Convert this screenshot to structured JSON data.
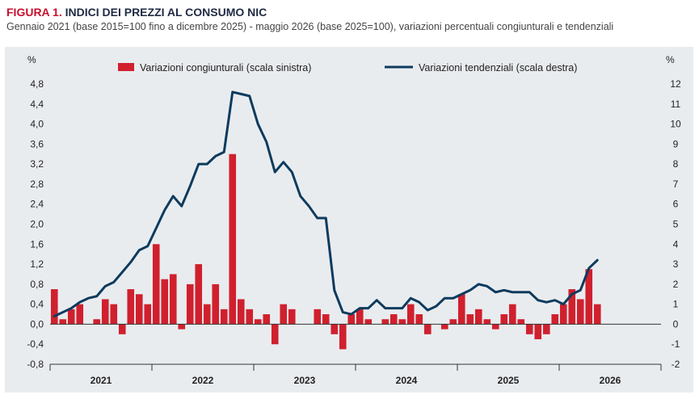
{
  "header": {
    "figure_label": "FIGURA 1.",
    "title": "INDICI DEI PREZZI AL CONSUMO NIC",
    "subtitle": "Gennaio 2021 (base 2015=100 fino a dicembre 2025) - maggio 2026 (base 2025=100), variazioni percentuali congiunturali e tendenziali"
  },
  "colors": {
    "bars": "#d0202e",
    "line": "#0d3b5e",
    "background": "#e9ecef",
    "title_red": "#c8102e"
  },
  "chart_data": {
    "type": "bar+line",
    "legend_position": "top",
    "grid": false,
    "left_axis": {
      "unit": "%",
      "ylim": [
        -0.8,
        4.8
      ],
      "ticks": [
        "4,8",
        "4,4",
        "4,0",
        "3,6",
        "3,2",
        "2,8",
        "2,4",
        "2,0",
        "1,6",
        "1,2",
        "0,8",
        "0,4",
        "0,0",
        "-0,4",
        "-0,8"
      ]
    },
    "right_axis": {
      "unit": "%",
      "ylim": [
        -2,
        12
      ],
      "ticks": [
        "12",
        "11",
        "10",
        "9",
        "8",
        "7",
        "6",
        "5",
        "4",
        "3",
        "2",
        "1",
        "0",
        "-1",
        "-2"
      ]
    },
    "x_labels": [
      "2021",
      "2022",
      "2023",
      "2024",
      "2025",
      "2026"
    ],
    "months": [
      "2021-01",
      "2021-02",
      "2021-03",
      "2021-04",
      "2021-05",
      "2021-06",
      "2021-07",
      "2021-08",
      "2021-09",
      "2021-10",
      "2021-11",
      "2021-12",
      "2022-01",
      "2022-02",
      "2022-03",
      "2022-04",
      "2022-05",
      "2022-06",
      "2022-07",
      "2022-08",
      "2022-09",
      "2022-10",
      "2022-11",
      "2022-12",
      "2023-01",
      "2023-02",
      "2023-03",
      "2023-04",
      "2023-05",
      "2023-06",
      "2023-07",
      "2023-08",
      "2023-09",
      "2023-10",
      "2023-11",
      "2023-12",
      "2024-01",
      "2024-02",
      "2024-03",
      "2024-04",
      "2024-05",
      "2024-06",
      "2024-07",
      "2024-08",
      "2024-09",
      "2024-10",
      "2024-11",
      "2024-12",
      "2025-01",
      "2025-02",
      "2025-03",
      "2025-04",
      "2025-05",
      "2025-06",
      "2025-07",
      "2025-08",
      "2025-09",
      "2025-10",
      "2025-11",
      "2025-12",
      "2026-01",
      "2026-02",
      "2026-03",
      "2026-04",
      "2026-05"
    ],
    "series": [
      {
        "name": "Variazioni congiunturali (scala sinistra)",
        "type": "bar",
        "axis": "left",
        "values": [
          0.7,
          0.1,
          0.3,
          0.4,
          0.0,
          0.1,
          0.5,
          0.4,
          -0.2,
          0.7,
          0.6,
          0.4,
          1.6,
          0.9,
          1.0,
          -0.1,
          0.8,
          1.2,
          0.4,
          0.8,
          0.3,
          3.4,
          0.5,
          0.3,
          0.1,
          0.2,
          -0.4,
          0.4,
          0.3,
          0.0,
          0.0,
          0.3,
          0.2,
          -0.2,
          -0.5,
          0.2,
          0.3,
          0.1,
          0.0,
          0.1,
          0.2,
          0.1,
          0.4,
          0.2,
          -0.2,
          0.0,
          -0.1,
          0.1,
          0.6,
          0.2,
          0.3,
          0.1,
          -0.1,
          0.2,
          0.4,
          0.1,
          -0.2,
          -0.3,
          -0.2,
          0.2,
          0.4,
          0.7,
          0.5,
          1.1,
          0.4
        ]
      },
      {
        "name": "Variazioni tendenziali (scala destra)",
        "type": "line",
        "axis": "right",
        "values": [
          0.4,
          0.6,
          0.8,
          1.1,
          1.3,
          1.4,
          1.9,
          2.1,
          2.6,
          3.1,
          3.7,
          3.9,
          4.8,
          5.7,
          6.4,
          5.9,
          6.9,
          8.0,
          8.0,
          8.4,
          8.6,
          11.6,
          11.5,
          11.4,
          10.0,
          9.1,
          7.6,
          8.1,
          7.6,
          6.4,
          5.9,
          5.3,
          5.3,
          1.7,
          0.6,
          0.5,
          0.8,
          0.8,
          1.2,
          0.8,
          0.8,
          0.8,
          1.3,
          1.1,
          0.7,
          0.9,
          1.3,
          1.3,
          1.5,
          1.7,
          2.0,
          1.9,
          1.6,
          1.7,
          1.6,
          1.6,
          1.6,
          1.2,
          1.1,
          1.2,
          1.0,
          1.5,
          1.7,
          2.8,
          3.2
        ]
      }
    ]
  }
}
